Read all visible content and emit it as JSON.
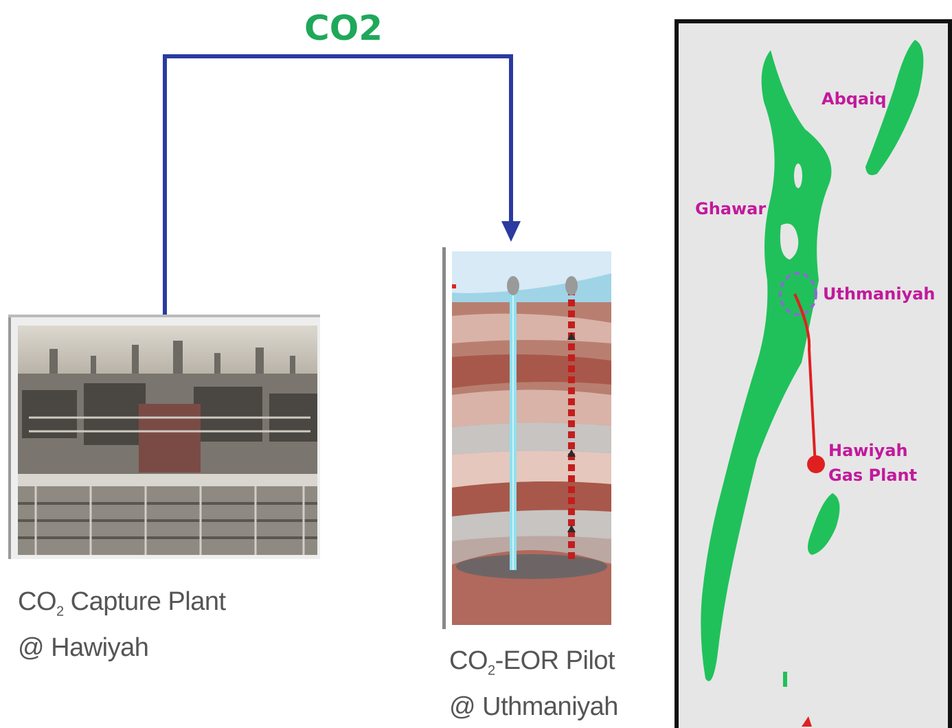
{
  "flow": {
    "label": "CO2"
  },
  "capture_plant": {
    "caption_prefix": "CO",
    "caption_sub": "2",
    "caption_rest": " Capture Plant",
    "caption_line2": "@ Hawiyah"
  },
  "eor_pilot": {
    "caption_prefix": "CO",
    "caption_sub": "2",
    "caption_rest": "-EOR Pilot",
    "caption_line2": "@ Uthmaniyah"
  },
  "map": {
    "labels": {
      "abqaiq": "Abqaiq",
      "ghawar": "Ghawar",
      "uthmaniyah": "Uthmaniyah",
      "hawiyah_line1": "Hawiyah",
      "hawiyah_line2": "Gas Plant"
    }
  },
  "colors": {
    "arrow": "#2b3aa0",
    "field": "#20c15a",
    "pipeline": "#e02020",
    "label": "#c2199c",
    "title": "#1fa85a"
  }
}
